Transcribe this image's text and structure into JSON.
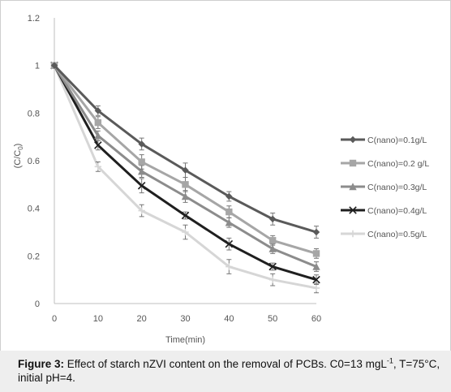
{
  "caption": {
    "label": "Figure 3:",
    "text_1": " Effect of starch nZVI content on the removal of PCBs. C0=13 mgL",
    "sup": "-1",
    "text_2": ", T=75°C, initial pH=4."
  },
  "chart_data": {
    "type": "line",
    "title": "",
    "xlabel": "Time(min)",
    "ylabel": "(C/C0)",
    "ylabel_main": "(C/C",
    "ylabel_sub": "0",
    "ylabel_end": ")",
    "x": [
      0,
      10,
      20,
      30,
      40,
      50,
      60
    ],
    "x_ticks": [
      "0",
      "10",
      "20",
      "30",
      "40",
      "50",
      "60"
    ],
    "y_ticks": [
      "0",
      "0.2",
      "0.4",
      "0.6",
      "0.8",
      "1",
      "1.2"
    ],
    "y_tick_values": [
      0,
      0.2,
      0.4,
      0.6,
      0.8,
      1.0,
      1.2
    ],
    "xlim": [
      0,
      60
    ],
    "ylim": [
      0,
      1.2
    ],
    "grid": false,
    "legend_position": "right",
    "series": [
      {
        "name": "C(nano)=0.1g/L",
        "values": [
          1.0,
          0.81,
          0.67,
          0.56,
          0.45,
          0.355,
          0.3
        ],
        "err": [
          0,
          0.02,
          0.025,
          0.03,
          0.02,
          0.025,
          0.025
        ],
        "color": "#5a5a5a",
        "marker": "diamond"
      },
      {
        "name": "C(nano)=0.2 g/L",
        "values": [
          1.0,
          0.76,
          0.595,
          0.5,
          0.385,
          0.265,
          0.21
        ],
        "err": [
          0,
          0.025,
          0.03,
          0.03,
          0.025,
          0.02,
          0.02
        ],
        "color": "#a6a6a6",
        "marker": "square"
      },
      {
        "name": "C(nano)=0.3g/L",
        "values": [
          1.0,
          0.705,
          0.555,
          0.45,
          0.34,
          0.23,
          0.155
        ],
        "err": [
          0,
          0.02,
          0.025,
          0.025,
          0.02,
          0.02,
          0.02
        ],
        "color": "#8c8c8c",
        "marker": "triangle"
      },
      {
        "name": "C(nano)=0.4g/L",
        "values": [
          1.0,
          0.665,
          0.495,
          0.37,
          0.25,
          0.155,
          0.1
        ],
        "err": [
          0,
          0.02,
          0.03,
          0.015,
          0.025,
          0.015,
          0.02
        ],
        "color": "#1f1f1f",
        "marker": "x"
      },
      {
        "name": "C(nano)=0.5g/L",
        "values": [
          1.0,
          0.575,
          0.39,
          0.3,
          0.155,
          0.1,
          0.065
        ],
        "err": [
          0,
          0.02,
          0.025,
          0.03,
          0.03,
          0.025,
          0.02
        ],
        "color": "#d6d6d6",
        "marker": "plus"
      }
    ]
  }
}
